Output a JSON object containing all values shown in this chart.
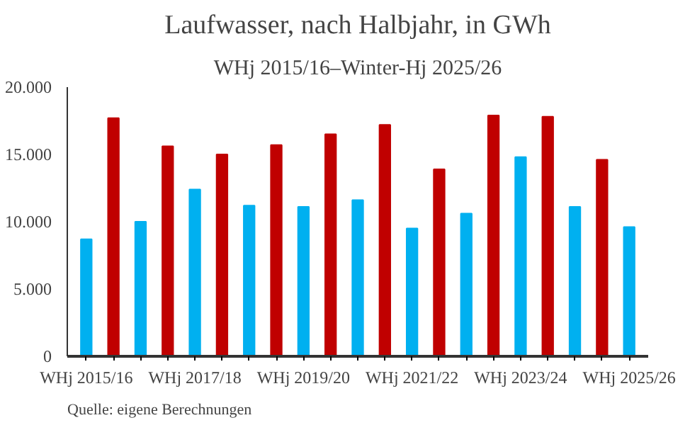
{
  "chart_data": {
    "type": "bar",
    "title": "Laufwasser, nach Halbjahr, in GWh",
    "subtitle": "WHj 2015/16–Winter-Hj 2025/26",
    "categories": [
      "WHj 2015/16",
      null,
      null,
      null,
      "WHj 2017/18",
      null,
      null,
      null,
      "WHj 2019/20",
      null,
      null,
      null,
      "WHj 2021/22",
      null,
      null,
      null,
      "WHj 2023/24",
      null,
      null,
      null,
      "WHj 2025/26"
    ],
    "values": [
      8700,
      17700,
      10000,
      15600,
      12400,
      15000,
      11200,
      15700,
      11100,
      16500,
      11600,
      17200,
      9500,
      13900,
      10600,
      17900,
      14800,
      17800,
      11100,
      14600,
      9600
    ],
    "colors": [
      "#00b0f0",
      "#c00000",
      "#00b0f0",
      "#c00000",
      "#00b0f0",
      "#c00000",
      "#00b0f0",
      "#c00000",
      "#00b0f0",
      "#c00000",
      "#00b0f0",
      "#c00000",
      "#00b0f0",
      "#c00000",
      "#00b0f0",
      "#c00000",
      "#00b0f0",
      "#c00000",
      "#00b0f0",
      "#c00000",
      "#00b0f0"
    ],
    "ylim": [
      0,
      20000
    ],
    "yticks": [
      {
        "value": 0,
        "label": "0"
      },
      {
        "value": 5000,
        "label": "5.000"
      },
      {
        "value": 10000,
        "label": "10.000"
      },
      {
        "value": 15000,
        "label": "15.000"
      },
      {
        "value": 20000,
        "label": "20.000"
      }
    ],
    "grid": false,
    "annotations": [
      "Quelle: eigene Berechnungen"
    ]
  }
}
